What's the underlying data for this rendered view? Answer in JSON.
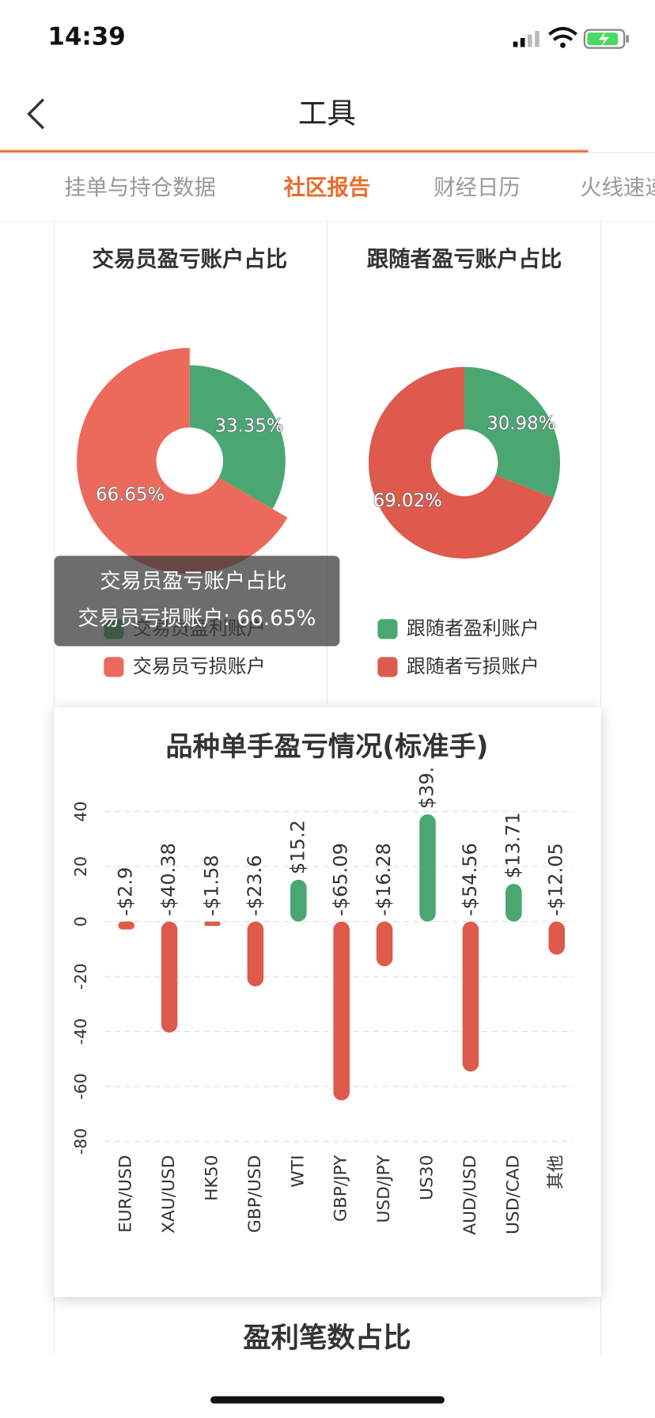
{
  "status_bar": {
    "time": "14:39"
  },
  "nav": {
    "title": "工具"
  },
  "tabs": [
    "挂单与持仓数据",
    "社区报告",
    "财经日历",
    "火线速递"
  ],
  "active_tab": 1,
  "chart_data": [
    {
      "type": "pie",
      "title": "交易员盈亏账户占比",
      "categories": [
        "交易员盈利账户",
        "交易员亏损账户"
      ],
      "values": [
        33.35,
        66.65
      ],
      "value_labels": [
        "33.35%",
        "66.65%"
      ],
      "colors": [
        "#4aa772",
        "#ec6a5c"
      ],
      "emphasis_index": 1
    },
    {
      "type": "pie",
      "title": "跟随者盈亏账户占比",
      "categories": [
        "跟随者盈利账户",
        "跟随者亏损账户"
      ],
      "values": [
        30.98,
        69.02
      ],
      "value_labels": [
        "30.98%",
        "69.02%"
      ],
      "colors": [
        "#4aa772",
        "#dd5a4c"
      ]
    },
    {
      "type": "bar",
      "title": "品种单手盈亏情况(标准手)",
      "categories": [
        "EUR/USD",
        "XAU/USD",
        "HK50",
        "GBP/USD",
        "WTI",
        "GBP/JPY",
        "USD/JPY",
        "US30",
        "AUD/USD",
        "USD/CAD",
        "其他"
      ],
      "values": [
        -2.9,
        -40.38,
        -1.58,
        -23.6,
        15.2,
        -65.09,
        -16.28,
        39,
        -54.56,
        13.71,
        -12.05
      ],
      "value_labels": [
        "-$2.9",
        "-$40.38",
        "-$1.58",
        "-$23.6",
        "$15.2",
        "-$65.09",
        "-$16.28",
        "$39.",
        "-$54.56",
        "$13.71",
        "-$12.05"
      ],
      "color_positive": "#4aa772",
      "color_negative": "#dd5a4c",
      "ylim": [
        -80,
        40
      ],
      "yticks": [
        -80,
        -60,
        -40,
        -20,
        0,
        20,
        40
      ],
      "grid": true
    }
  ],
  "tooltip": {
    "title": "交易员盈亏账户占比",
    "text": "交易员亏损账户: 66.65%"
  },
  "next_section_title": "盈利笔数占比"
}
